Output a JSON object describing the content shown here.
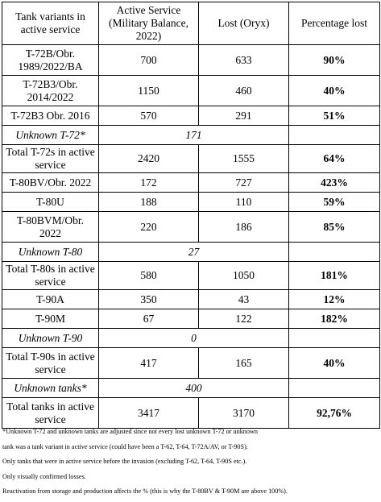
{
  "table": {
    "headers": [
      "Tank variants in active service",
      "Active Service (Military Balance, 2022)",
      "Lost (Oryx)",
      "Percentage lost"
    ],
    "rows": [
      {
        "variant": "T-72B/Obr. 1989/2022/BA",
        "active": "700",
        "lost": "633",
        "pct": "90%",
        "kind": "data",
        "height": "tall"
      },
      {
        "variant": "T-72B3/Obr. 2014/2022",
        "active": "1150",
        "lost": "460",
        "pct": "40%",
        "kind": "data",
        "height": "tall"
      },
      {
        "variant": "T-72B3 Obr. 2016",
        "active": "570",
        "lost": "291",
        "pct": "51%",
        "kind": "data",
        "height": "short"
      },
      {
        "variant": "Unknown T-72*",
        "active": "",
        "lost": "171",
        "pct": "",
        "kind": "unknown",
        "height": "short"
      },
      {
        "variant": "Total T-72s in active service",
        "active": "2420",
        "lost": "1555",
        "pct": "64%",
        "kind": "data",
        "height": "mid"
      },
      {
        "variant": "T-80BV/Obr. 2022",
        "active": "172",
        "lost": "727",
        "pct": "423%",
        "kind": "data",
        "height": "short"
      },
      {
        "variant": "T-80U",
        "active": "188",
        "lost": "110",
        "pct": "59%",
        "kind": "data",
        "height": "short"
      },
      {
        "variant": "T-80BVM/Obr. 2022",
        "active": "220",
        "lost": "186",
        "pct": "85%",
        "kind": "data",
        "height": "tall"
      },
      {
        "variant": "Unknown T-80",
        "active": "",
        "lost": "27",
        "pct": "",
        "kind": "unknown",
        "height": "short"
      },
      {
        "variant": "Total T-80s in active service",
        "active": "580",
        "lost": "1050",
        "pct": "181%",
        "kind": "data",
        "height": "mid"
      },
      {
        "variant": "T-90A",
        "active": "350",
        "lost": "43",
        "pct": "12%",
        "kind": "data",
        "height": "short"
      },
      {
        "variant": "T-90M",
        "active": "67",
        "lost": "122",
        "pct": "182%",
        "kind": "data",
        "height": "short"
      },
      {
        "variant": "Unknown T-90",
        "active": "",
        "lost": "0",
        "pct": "",
        "kind": "unknown",
        "height": "short"
      },
      {
        "variant": "Total T-90s in active service",
        "active": "417",
        "lost": "165",
        "pct": "40%",
        "kind": "data",
        "height": "tall"
      },
      {
        "variant": "Unknown tanks*",
        "active": "",
        "lost": "400",
        "pct": "",
        "kind": "unknown",
        "height": "short"
      },
      {
        "variant": "Total tanks in active service",
        "active": "3417",
        "lost": "3170",
        "pct": "92,76%",
        "kind": "data",
        "height": "tall"
      }
    ]
  },
  "notes": [
    "*Unknown T-72 and unknown tanks are adjusted since not every lost unknown T-72 or unknown",
    "tank was a tank variant in active service (could have been a T-62, T-64, T-72A/AV, or T-90S).",
    "Only tanks that were in active service before the invasion (excluding T-62, T-64, T-90S etc.).",
    "Only visually confirmed losses.",
    "Reactivation from storage and production affects the % (this is why the T-80BV & T-90M are above 100%)."
  ]
}
